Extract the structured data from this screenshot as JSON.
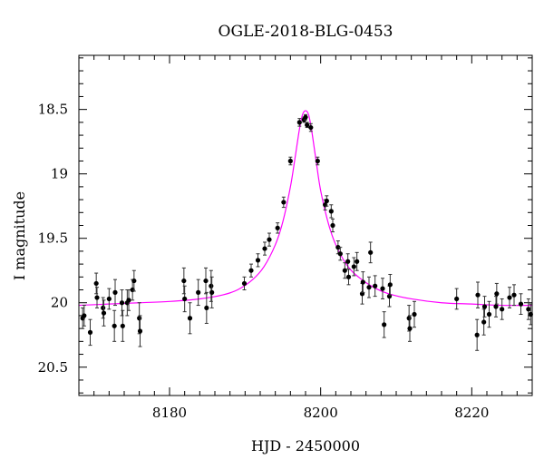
{
  "chart_data": {
    "type": "scatter",
    "title": "OGLE-2018-BLG-0453",
    "xlabel": "HJD - 2450000",
    "ylabel": "I magnitude",
    "xlim": [
      8168,
      8228
    ],
    "ylim": [
      20.72,
      18.08
    ],
    "y_inverted": true,
    "xticks_major": [
      8180,
      8200,
      8220
    ],
    "xticks_minor_step": 2,
    "yticks_major": [
      18.5,
      19,
      19.5,
      20,
      20.5
    ],
    "yticks_minor_step": 0.1,
    "ytick_labels": [
      "18.5",
      "19",
      "19.5",
      "20",
      "20.5"
    ],
    "xtick_labels": [
      "8180",
      "8200",
      "8220"
    ],
    "grid": false,
    "colors": {
      "points": "#000000",
      "model": "#ff00ff"
    },
    "series": [
      {
        "kind": "points_with_errorbars",
        "x": [
          8168.5,
          8168.7,
          8169.5,
          8170.3,
          8170.4,
          8171.2,
          8171.3,
          8172.0,
          8172.7,
          8172.8,
          8173.7,
          8173.8,
          8174.4,
          8174.6,
          8175.1,
          8175.3,
          8176.0,
          8176.1,
          8181.9,
          8182.0,
          8182.7,
          8183.8,
          8184.8,
          8184.9,
          8185.5,
          8185.6,
          8189.9,
          8190.8,
          8191.7,
          8192.6,
          8193.2,
          8194.3,
          8195.1,
          8196.0,
          8197.2,
          8197.8,
          8198.0,
          8198.2,
          8198.7,
          8199.6,
          8200.6,
          8200.8,
          8201.4,
          8201.6,
          8202.3,
          8202.6,
          8203.2,
          8203.6,
          8203.7,
          8204.4,
          8204.8,
          8205.5,
          8205.6,
          8206.4,
          8206.6,
          8207.2,
          8208.2,
          8208.4,
          8209.1,
          8209.2,
          8211.7,
          8211.8,
          8212.4,
          8218.0,
          8220.7,
          8220.8,
          8221.6,
          8221.7,
          8222.3,
          8223.2,
          8223.3,
          8224.0,
          8225.0,
          8225.6,
          8226.5,
          8227.5,
          8227.8
        ],
        "y": [
          20.12,
          20.1,
          20.23,
          19.85,
          19.96,
          20.04,
          20.08,
          19.97,
          20.18,
          19.92,
          20.0,
          20.18,
          20.0,
          19.98,
          19.9,
          19.83,
          20.12,
          20.22,
          19.83,
          19.97,
          20.12,
          19.92,
          19.83,
          20.04,
          19.87,
          19.92,
          19.85,
          19.75,
          19.67,
          19.58,
          19.51,
          19.42,
          19.22,
          18.9,
          18.6,
          18.58,
          18.56,
          18.62,
          18.64,
          18.9,
          19.24,
          19.21,
          19.29,
          19.4,
          19.57,
          19.62,
          19.75,
          19.68,
          19.8,
          19.72,
          19.68,
          19.93,
          19.84,
          19.88,
          19.61,
          19.87,
          19.89,
          20.17,
          19.95,
          19.86,
          20.12,
          20.2,
          20.09,
          19.97,
          20.25,
          19.94,
          20.15,
          20.03,
          20.09,
          20.03,
          19.93,
          20.05,
          19.96,
          19.94,
          20.01,
          20.05,
          20.09
        ],
        "err": [
          0.08,
          0.08,
          0.1,
          0.08,
          0.08,
          0.08,
          0.1,
          0.08,
          0.12,
          0.1,
          0.1,
          0.12,
          0.1,
          0.08,
          0.08,
          0.08,
          0.12,
          0.12,
          0.1,
          0.1,
          0.12,
          0.1,
          0.1,
          0.12,
          0.12,
          0.12,
          0.05,
          0.05,
          0.05,
          0.05,
          0.05,
          0.04,
          0.04,
          0.03,
          0.03,
          0.02,
          0.02,
          0.02,
          0.03,
          0.03,
          0.04,
          0.04,
          0.05,
          0.05,
          0.05,
          0.05,
          0.06,
          0.06,
          0.06,
          0.07,
          0.07,
          0.08,
          0.08,
          0.08,
          0.08,
          0.08,
          0.08,
          0.1,
          0.08,
          0.08,
          0.1,
          0.1,
          0.1,
          0.08,
          0.12,
          0.1,
          0.1,
          0.08,
          0.1,
          0.08,
          0.08,
          0.08,
          0.08,
          0.08,
          0.08,
          0.08,
          0.08
        ]
      },
      {
        "kind": "model_curve",
        "x": [
          8168,
          8172,
          8176,
          8180,
          8184,
          8187,
          8189,
          8191,
          8192.5,
          8194,
          8195,
          8196,
          8196.6,
          8197.2,
          8197.6,
          8198.0,
          8198.4,
          8198.8,
          8199.4,
          8200,
          8201,
          8202,
          8203.5,
          8205,
          8207,
          8209,
          8212,
          8216,
          8220,
          8224,
          8228
        ],
        "y": [
          20.02,
          20.01,
          20.0,
          19.99,
          19.97,
          19.94,
          19.9,
          19.82,
          19.72,
          19.55,
          19.37,
          19.1,
          18.88,
          18.65,
          18.54,
          18.51,
          18.54,
          18.66,
          18.9,
          19.13,
          19.38,
          19.55,
          19.71,
          19.8,
          19.88,
          19.93,
          19.97,
          20.0,
          20.01,
          20.02,
          20.02
        ]
      }
    ]
  }
}
